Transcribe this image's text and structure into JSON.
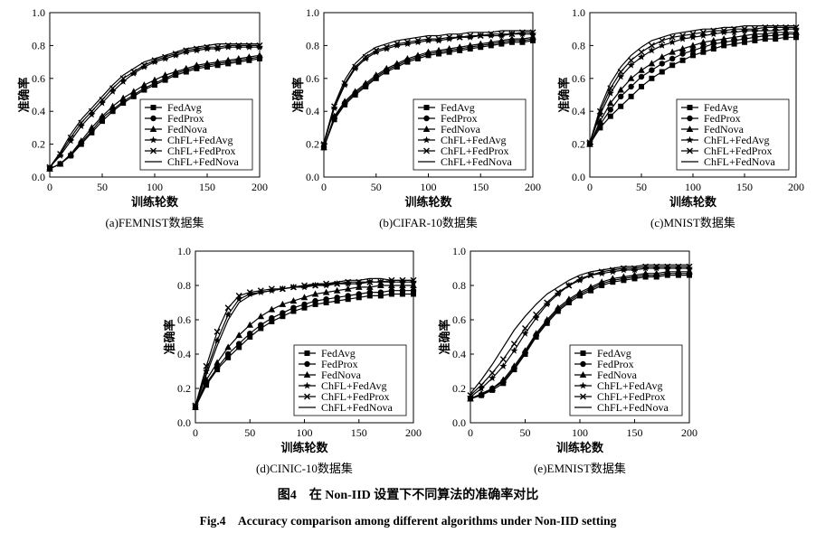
{
  "figure": {
    "caption_cn": "图4　在 Non-IID 设置下不同算法的准确率对比",
    "caption_en": "Fig.4　Accuracy comparison among different algorithms under Non-IID setting"
  },
  "legend_order": [
    "FedAvg",
    "FedProx",
    "FedNova",
    "ChFL+FedAvg",
    "ChFL+FedProx",
    "ChFL+FedNova"
  ],
  "chart_data": [
    {
      "type": "line",
      "subtitle": "(a)FEMNIST数据集",
      "xlabel": "训练轮数",
      "ylabel": "准确率",
      "xlim": [
        0,
        200
      ],
      "ylim": [
        0,
        1.0
      ],
      "xticks": [
        "0",
        "50",
        "100",
        "150",
        "200"
      ],
      "yticks": [
        "0.0",
        "0.2",
        "0.4",
        "0.6",
        "0.8",
        "1.0"
      ],
      "legend_position": "bottom-right",
      "grid": false,
      "x": [
        0,
        10,
        20,
        30,
        40,
        50,
        60,
        70,
        80,
        90,
        100,
        110,
        120,
        130,
        140,
        150,
        160,
        170,
        180,
        190,
        200
      ],
      "series": [
        {
          "name": "FedAvg",
          "marker": "square",
          "values": [
            0.05,
            0.08,
            0.13,
            0.2,
            0.27,
            0.34,
            0.4,
            0.45,
            0.49,
            0.53,
            0.56,
            0.59,
            0.62,
            0.64,
            0.66,
            0.67,
            0.68,
            0.69,
            0.7,
            0.71,
            0.72
          ]
        },
        {
          "name": "FedProx",
          "marker": "circle",
          "values": [
            0.05,
            0.08,
            0.13,
            0.21,
            0.28,
            0.36,
            0.41,
            0.46,
            0.5,
            0.54,
            0.57,
            0.6,
            0.63,
            0.65,
            0.67,
            0.68,
            0.69,
            0.7,
            0.71,
            0.72,
            0.73
          ]
        },
        {
          "name": "FedNova",
          "marker": "triangle",
          "values": [
            0.05,
            0.08,
            0.14,
            0.22,
            0.3,
            0.37,
            0.43,
            0.48,
            0.52,
            0.56,
            0.59,
            0.62,
            0.64,
            0.66,
            0.68,
            0.69,
            0.7,
            0.71,
            0.72,
            0.73,
            0.74
          ]
        },
        {
          "name": "ChFL+FedAvg",
          "marker": "star",
          "values": [
            0.06,
            0.13,
            0.22,
            0.31,
            0.38,
            0.45,
            0.52,
            0.58,
            0.63,
            0.67,
            0.7,
            0.72,
            0.74,
            0.76,
            0.77,
            0.78,
            0.78,
            0.79,
            0.79,
            0.79,
            0.79
          ]
        },
        {
          "name": "ChFL+FedProx",
          "marker": "x",
          "values": [
            0.06,
            0.14,
            0.24,
            0.33,
            0.4,
            0.47,
            0.54,
            0.6,
            0.64,
            0.68,
            0.71,
            0.73,
            0.75,
            0.77,
            0.78,
            0.79,
            0.79,
            0.8,
            0.8,
            0.8,
            0.8
          ]
        },
        {
          "name": "ChFL+FedNova",
          "marker": "none",
          "values": [
            0.06,
            0.15,
            0.26,
            0.35,
            0.42,
            0.49,
            0.56,
            0.62,
            0.66,
            0.7,
            0.72,
            0.74,
            0.76,
            0.78,
            0.79,
            0.8,
            0.81,
            0.81,
            0.81,
            0.81,
            0.81
          ]
        }
      ]
    },
    {
      "type": "line",
      "subtitle": "(b)CIFAR-10数据集",
      "xlabel": "训练轮数",
      "ylabel": "准确率",
      "xlim": [
        0,
        200
      ],
      "ylim": [
        0,
        1.0
      ],
      "xticks": [
        "0",
        "50",
        "100",
        "150",
        "200"
      ],
      "yticks": [
        "0.0",
        "0.2",
        "0.4",
        "0.6",
        "0.8",
        "1.0"
      ],
      "legend_position": "bottom-right",
      "grid": false,
      "x": [
        0,
        10,
        20,
        30,
        40,
        50,
        60,
        70,
        80,
        90,
        100,
        110,
        120,
        130,
        140,
        150,
        160,
        170,
        180,
        190,
        200
      ],
      "series": [
        {
          "name": "FedAvg",
          "marker": "square",
          "values": [
            0.18,
            0.35,
            0.44,
            0.5,
            0.55,
            0.6,
            0.64,
            0.67,
            0.7,
            0.72,
            0.74,
            0.75,
            0.76,
            0.77,
            0.78,
            0.79,
            0.8,
            0.81,
            0.82,
            0.82,
            0.83
          ]
        },
        {
          "name": "FedProx",
          "marker": "circle",
          "values": [
            0.18,
            0.36,
            0.45,
            0.51,
            0.56,
            0.61,
            0.65,
            0.68,
            0.71,
            0.73,
            0.75,
            0.76,
            0.77,
            0.78,
            0.79,
            0.8,
            0.81,
            0.82,
            0.83,
            0.83,
            0.84
          ]
        },
        {
          "name": "FedNova",
          "marker": "triangle",
          "values": [
            0.18,
            0.37,
            0.46,
            0.52,
            0.57,
            0.62,
            0.66,
            0.69,
            0.72,
            0.74,
            0.76,
            0.77,
            0.78,
            0.79,
            0.8,
            0.81,
            0.82,
            0.83,
            0.84,
            0.84,
            0.85
          ]
        },
        {
          "name": "ChFL+FedAvg",
          "marker": "star",
          "values": [
            0.2,
            0.42,
            0.56,
            0.66,
            0.72,
            0.76,
            0.78,
            0.8,
            0.81,
            0.82,
            0.83,
            0.83,
            0.84,
            0.85,
            0.85,
            0.86,
            0.86,
            0.86,
            0.87,
            0.87,
            0.87
          ]
        },
        {
          "name": "ChFL+FedProx",
          "marker": "x",
          "values": [
            0.2,
            0.43,
            0.57,
            0.67,
            0.73,
            0.77,
            0.79,
            0.81,
            0.82,
            0.83,
            0.84,
            0.84,
            0.85,
            0.85,
            0.86,
            0.86,
            0.87,
            0.87,
            0.87,
            0.88,
            0.88
          ]
        },
        {
          "name": "ChFL+FedNova",
          "marker": "none",
          "values": [
            0.21,
            0.44,
            0.59,
            0.69,
            0.75,
            0.79,
            0.81,
            0.83,
            0.84,
            0.85,
            0.86,
            0.86,
            0.87,
            0.87,
            0.88,
            0.88,
            0.88,
            0.89,
            0.89,
            0.89,
            0.89
          ]
        }
      ]
    },
    {
      "type": "line",
      "subtitle": "(c)MNIST数据集",
      "xlabel": "训练轮数",
      "ylabel": "准确率",
      "xlim": [
        0,
        200
      ],
      "ylim": [
        0,
        1.0
      ],
      "xticks": [
        "0",
        "50",
        "100",
        "150",
        "200"
      ],
      "yticks": [
        "0.0",
        "0.2",
        "0.4",
        "0.6",
        "0.8",
        "1.0"
      ],
      "legend_position": "bottom-right",
      "grid": false,
      "x": [
        0,
        10,
        20,
        30,
        40,
        50,
        60,
        70,
        80,
        90,
        100,
        110,
        120,
        130,
        140,
        150,
        160,
        170,
        180,
        190,
        200
      ],
      "series": [
        {
          "name": "FedAvg",
          "marker": "square",
          "values": [
            0.2,
            0.3,
            0.37,
            0.43,
            0.49,
            0.55,
            0.6,
            0.64,
            0.68,
            0.71,
            0.74,
            0.76,
            0.78,
            0.8,
            0.81,
            0.82,
            0.83,
            0.84,
            0.84,
            0.85,
            0.85
          ]
        },
        {
          "name": "FedProx",
          "marker": "circle",
          "values": [
            0.2,
            0.32,
            0.41,
            0.49,
            0.55,
            0.61,
            0.65,
            0.69,
            0.72,
            0.75,
            0.77,
            0.79,
            0.81,
            0.82,
            0.83,
            0.84,
            0.85,
            0.86,
            0.86,
            0.87,
            0.87
          ]
        },
        {
          "name": "FedNova",
          "marker": "triangle",
          "values": [
            0.2,
            0.34,
            0.45,
            0.53,
            0.6,
            0.65,
            0.69,
            0.73,
            0.76,
            0.78,
            0.8,
            0.82,
            0.83,
            0.84,
            0.85,
            0.86,
            0.87,
            0.87,
            0.88,
            0.88,
            0.88
          ]
        },
        {
          "name": "ChFL+FedAvg",
          "marker": "star",
          "values": [
            0.21,
            0.38,
            0.51,
            0.61,
            0.68,
            0.73,
            0.77,
            0.8,
            0.82,
            0.84,
            0.85,
            0.86,
            0.87,
            0.88,
            0.88,
            0.89,
            0.89,
            0.89,
            0.89,
            0.9,
            0.9
          ]
        },
        {
          "name": "ChFL+FedProx",
          "marker": "x",
          "values": [
            0.21,
            0.4,
            0.54,
            0.64,
            0.71,
            0.76,
            0.8,
            0.83,
            0.85,
            0.86,
            0.87,
            0.88,
            0.89,
            0.89,
            0.9,
            0.9,
            0.9,
            0.91,
            0.91,
            0.91,
            0.91
          ]
        },
        {
          "name": "ChFL+FedNova",
          "marker": "none",
          "values": [
            0.21,
            0.42,
            0.57,
            0.67,
            0.74,
            0.79,
            0.83,
            0.85,
            0.87,
            0.88,
            0.89,
            0.9,
            0.9,
            0.91,
            0.91,
            0.92,
            0.92,
            0.92,
            0.92,
            0.92,
            0.92
          ]
        }
      ]
    },
    {
      "type": "line",
      "subtitle": "(d)CINIC-10数据集",
      "xlabel": "训练轮数",
      "ylabel": "准确率",
      "xlim": [
        0,
        200
      ],
      "ylim": [
        0,
        1.0
      ],
      "xticks": [
        "0",
        "50",
        "100",
        "150",
        "200"
      ],
      "yticks": [
        "0.0",
        "0.2",
        "0.4",
        "0.6",
        "0.8",
        "1.0"
      ],
      "legend_position": "bottom-right",
      "grid": false,
      "x": [
        0,
        10,
        20,
        30,
        40,
        50,
        60,
        70,
        80,
        90,
        100,
        110,
        120,
        130,
        140,
        150,
        160,
        170,
        180,
        190,
        200
      ],
      "series": [
        {
          "name": "FedAvg",
          "marker": "square",
          "values": [
            0.09,
            0.22,
            0.31,
            0.38,
            0.44,
            0.5,
            0.55,
            0.59,
            0.62,
            0.65,
            0.67,
            0.69,
            0.7,
            0.71,
            0.72,
            0.73,
            0.74,
            0.74,
            0.75,
            0.75,
            0.75
          ]
        },
        {
          "name": "FedProx",
          "marker": "circle",
          "values": [
            0.09,
            0.23,
            0.32,
            0.4,
            0.46,
            0.52,
            0.57,
            0.61,
            0.64,
            0.67,
            0.69,
            0.71,
            0.72,
            0.73,
            0.74,
            0.75,
            0.76,
            0.76,
            0.77,
            0.77,
            0.77
          ]
        },
        {
          "name": "FedNova",
          "marker": "triangle",
          "values": [
            0.09,
            0.25,
            0.35,
            0.44,
            0.51,
            0.57,
            0.62,
            0.66,
            0.69,
            0.71,
            0.73,
            0.75,
            0.76,
            0.77,
            0.78,
            0.79,
            0.79,
            0.8,
            0.8,
            0.8,
            0.8
          ]
        },
        {
          "name": "ChFL+FedAvg",
          "marker": "star",
          "values": [
            0.1,
            0.3,
            0.48,
            0.63,
            0.72,
            0.75,
            0.76,
            0.77,
            0.78,
            0.79,
            0.79,
            0.8,
            0.8,
            0.81,
            0.81,
            0.81,
            0.82,
            0.82,
            0.82,
            0.82,
            0.82
          ]
        },
        {
          "name": "ChFL+FedProx",
          "marker": "x",
          "values": [
            0.1,
            0.33,
            0.53,
            0.67,
            0.74,
            0.76,
            0.77,
            0.78,
            0.78,
            0.79,
            0.8,
            0.8,
            0.81,
            0.81,
            0.82,
            0.82,
            0.82,
            0.82,
            0.83,
            0.83,
            0.83
          ]
        },
        {
          "name": "ChFL+FedNova",
          "marker": "none",
          "values": [
            0.1,
            0.28,
            0.45,
            0.6,
            0.7,
            0.74,
            0.76,
            0.77,
            0.78,
            0.79,
            0.8,
            0.81,
            0.81,
            0.82,
            0.83,
            0.83,
            0.84,
            0.84,
            0.83,
            0.83,
            0.83
          ]
        }
      ]
    },
    {
      "type": "line",
      "subtitle": "(e)EMNIST数据集",
      "xlabel": "训练轮数",
      "ylabel": "准确率",
      "xlim": [
        0,
        200
      ],
      "ylim": [
        0,
        1.0
      ],
      "xticks": [
        "0",
        "50",
        "100",
        "150",
        "200"
      ],
      "yticks": [
        "0.0",
        "0.2",
        "0.4",
        "0.6",
        "0.8",
        "1.0"
      ],
      "legend_position": "bottom-right",
      "grid": false,
      "x": [
        0,
        10,
        20,
        30,
        40,
        50,
        60,
        70,
        80,
        90,
        100,
        110,
        120,
        130,
        140,
        150,
        160,
        170,
        180,
        190,
        200
      ],
      "series": [
        {
          "name": "FedAvg",
          "marker": "square",
          "values": [
            0.14,
            0.16,
            0.19,
            0.23,
            0.31,
            0.4,
            0.5,
            0.58,
            0.65,
            0.7,
            0.74,
            0.77,
            0.8,
            0.82,
            0.83,
            0.84,
            0.85,
            0.85,
            0.86,
            0.86,
            0.86
          ]
        },
        {
          "name": "FedProx",
          "marker": "circle",
          "values": [
            0.14,
            0.16,
            0.2,
            0.24,
            0.32,
            0.41,
            0.51,
            0.59,
            0.66,
            0.71,
            0.75,
            0.78,
            0.81,
            0.83,
            0.84,
            0.85,
            0.86,
            0.86,
            0.87,
            0.87,
            0.87
          ]
        },
        {
          "name": "FedNova",
          "marker": "triangle",
          "values": [
            0.14,
            0.17,
            0.2,
            0.25,
            0.33,
            0.42,
            0.52,
            0.6,
            0.67,
            0.72,
            0.76,
            0.79,
            0.82,
            0.84,
            0.85,
            0.86,
            0.87,
            0.87,
            0.88,
            0.88,
            0.88
          ]
        },
        {
          "name": "ChFL+FedAvg",
          "marker": "star",
          "values": [
            0.15,
            0.2,
            0.26,
            0.33,
            0.42,
            0.52,
            0.61,
            0.69,
            0.75,
            0.8,
            0.83,
            0.86,
            0.87,
            0.88,
            0.89,
            0.89,
            0.9,
            0.9,
            0.9,
            0.9,
            0.9
          ]
        },
        {
          "name": "ChFL+FedProx",
          "marker": "x",
          "values": [
            0.16,
            0.22,
            0.29,
            0.37,
            0.46,
            0.55,
            0.63,
            0.7,
            0.76,
            0.8,
            0.84,
            0.86,
            0.88,
            0.89,
            0.9,
            0.9,
            0.91,
            0.91,
            0.91,
            0.91,
            0.91
          ]
        },
        {
          "name": "ChFL+FedNova",
          "marker": "none",
          "values": [
            0.17,
            0.25,
            0.34,
            0.44,
            0.54,
            0.62,
            0.69,
            0.75,
            0.79,
            0.83,
            0.86,
            0.88,
            0.89,
            0.9,
            0.91,
            0.91,
            0.92,
            0.92,
            0.92,
            0.92,
            0.92
          ]
        }
      ]
    }
  ]
}
